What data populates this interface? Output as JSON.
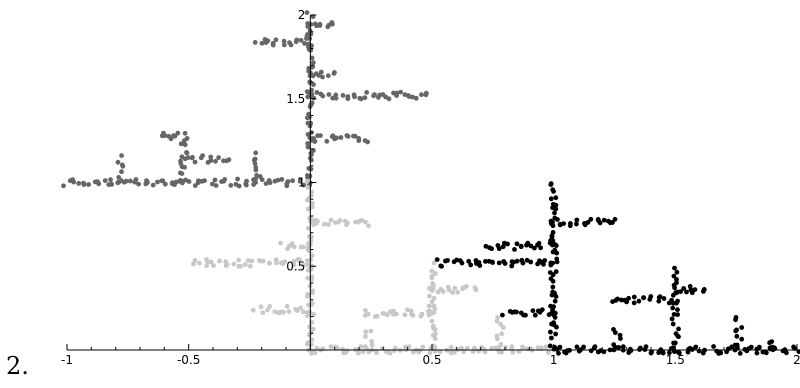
{
  "item_label": "2.",
  "chart_data": {
    "type": "scatter",
    "xlim": [
      -1,
      2
    ],
    "ylim": [
      0,
      2
    ],
    "x_ticks": [
      -1,
      -0.5,
      0.5,
      1,
      1.5,
      2
    ],
    "x_tick_labels": [
      "-1",
      "-0.5",
      "0.5",
      "1",
      "1.5",
      "2"
    ],
    "y_ticks": [
      0.5,
      1,
      1.5,
      2
    ],
    "y_tick_labels": [
      "0.5",
      "1",
      "1.5",
      "2"
    ],
    "grid": false,
    "legend": false,
    "series": [
      {
        "color": "#666666",
        "shape": "tree",
        "root": [
          0,
          1
        ],
        "trunk_to": [
          0,
          2
        ],
        "branches": [
          {
            "at": 1.26,
            "to": [
              0.24,
              1.26
            ]
          },
          {
            "at": 1.52,
            "to": [
              0.48,
              1.52
            ]
          },
          {
            "at": 1.64,
            "to": [
              0.1,
              1.64
            ]
          },
          {
            "at": 1.84,
            "to": [
              -0.22,
              1.84
            ]
          },
          {
            "at": 1.94,
            "to": [
              0.1,
              1.94
            ]
          },
          {
            "at": 1.0,
            "to": [
              -1.0,
              1.0
            ]
          }
        ],
        "sub_branches": [
          {
            "from": [
              -0.78,
              1.0
            ],
            "to": [
              -0.78,
              1.14
            ]
          },
          {
            "from": [
              -0.52,
              1.0
            ],
            "to": [
              -0.52,
              1.28
            ]
          },
          {
            "from": [
              -0.52,
              1.14
            ],
            "to": [
              -0.34,
              1.14
            ]
          },
          {
            "from": [
              -0.22,
              1.0
            ],
            "to": [
              -0.22,
              1.16
            ]
          },
          {
            "from": [
              -0.52,
              1.28
            ],
            "to": [
              -0.62,
              1.28
            ]
          }
        ]
      },
      {
        "color": "#c8c8c8",
        "shape": "tree",
        "root": [
          0,
          0
        ],
        "trunk_to": [
          0,
          1
        ],
        "branches": [
          {
            "at": 0.76,
            "to": [
              0.24,
              0.76
            ]
          },
          {
            "at": 0.52,
            "to": [
              -0.48,
              0.52
            ]
          },
          {
            "at": 0.62,
            "to": [
              -0.12,
              0.62
            ]
          },
          {
            "at": 0.24,
            "to": [
              -0.22,
              0.24
            ]
          },
          {
            "at": 0.0,
            "to": [
              1.0,
              0.0
            ]
          }
        ],
        "sub_branches": [
          {
            "from": [
              0.5,
              0.0
            ],
            "to": [
              0.5,
              0.5
            ]
          },
          {
            "from": [
              0.5,
              0.22
            ],
            "to": [
              0.22,
              0.22
            ]
          },
          {
            "from": [
              0.5,
              0.36
            ],
            "to": [
              0.68,
              0.36
            ]
          },
          {
            "from": [
              0.78,
              0.0
            ],
            "to": [
              0.78,
              0.18
            ]
          },
          {
            "from": [
              0.24,
              0.0
            ],
            "to": [
              0.24,
              0.12
            ]
          }
        ]
      },
      {
        "color": "#000000",
        "shape": "tree",
        "root": [
          1,
          0
        ],
        "trunk_to": [
          1,
          1
        ],
        "branches": [
          {
            "at": 0.52,
            "to": [
              0.52,
              0.52
            ]
          },
          {
            "at": 0.76,
            "to": [
              1.26,
              0.76
            ]
          },
          {
            "at": 0.62,
            "to": [
              0.72,
              0.62
            ]
          },
          {
            "at": 0.22,
            "to": [
              0.8,
              0.22
            ]
          },
          {
            "at": 0.0,
            "to": [
              2.0,
              0.0
            ]
          }
        ],
        "sub_branches": [
          {
            "from": [
              1.5,
              0.0
            ],
            "to": [
              1.5,
              0.48
            ]
          },
          {
            "from": [
              1.5,
              0.3
            ],
            "to": [
              1.24,
              0.3
            ]
          },
          {
            "from": [
              1.5,
              0.36
            ],
            "to": [
              1.62,
              0.36
            ]
          },
          {
            "from": [
              1.76,
              0.0
            ],
            "to": [
              1.76,
              0.18
            ]
          },
          {
            "from": [
              1.26,
              0.0
            ],
            "to": [
              1.26,
              0.12
            ]
          },
          {
            "from": [
              1.9,
              0.0
            ],
            "to": [
              1.9,
              0.06
            ]
          }
        ]
      }
    ]
  }
}
